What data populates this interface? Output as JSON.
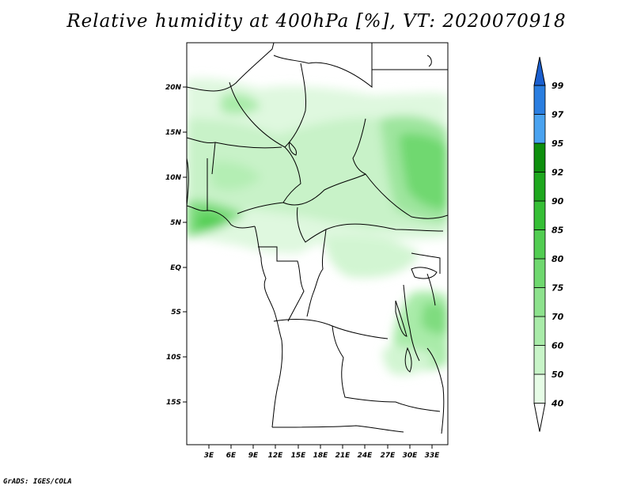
{
  "title": "Relative humidity at 400hPa [%], VT: 2020070918",
  "credit": "GrADS: IGES/COLA",
  "map": {
    "lat_labels": [
      "20N",
      "15N",
      "10N",
      "5N",
      "EQ",
      "5S",
      "10S",
      "15S"
    ],
    "lon_labels": [
      "3E",
      "6E",
      "9E",
      "12E",
      "15E",
      "18E",
      "21E",
      "24E",
      "27E",
      "30E",
      "33E"
    ]
  },
  "colorbar": {
    "levels": [
      "40",
      "50",
      "60",
      "70",
      "75",
      "80",
      "85",
      "90",
      "92",
      "95",
      "97",
      "99"
    ],
    "colors": [
      "#ffffff",
      "#e6fce6",
      "#c8f4c8",
      "#a9eba9",
      "#8de28d",
      "#6fd86f",
      "#52cd52",
      "#36bf36",
      "#1ea81e",
      "#0d8f0d",
      "#4aa3f0",
      "#2a7ee0",
      "#1a5fcf"
    ]
  }
}
